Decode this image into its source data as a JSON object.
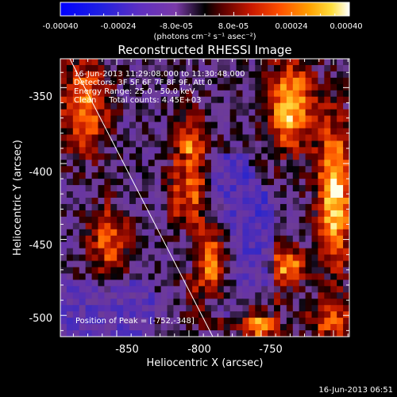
{
  "colorbar": {
    "ticks": [
      "-0.00040",
      "-0.00024",
      "-8.0e-05",
      "8.0e-05",
      "0.00024",
      "0.00040"
    ],
    "units": "(photons cm⁻² s⁻¹ asec⁻²)"
  },
  "title": "Reconstructed RHESSI Image",
  "annotations": [
    "16-Jun-2013 11:29:08.000 to 11:30:48.000",
    "Detectors: 3F 5F 6F 7F 8F 9F, Att 0",
    "Energy Range: 25.0 - 50.0 keV",
    "Clean     Total counts: 4.45E+03"
  ],
  "peak_text": "Position of Peak = [-752,-348]",
  "xaxis": {
    "label": "Heliocentric X (arcsec)",
    "ticks": [
      "-850",
      "-800",
      "-750"
    ],
    "tick_values": [
      -850,
      -800,
      -750
    ],
    "range": [
      -889,
      -689
    ]
  },
  "yaxis": {
    "label": "Heliocentric Y (arcsec)",
    "ticks": [
      "-350",
      "-400",
      "-450",
      "-500"
    ],
    "tick_values": [
      -350,
      -400,
      -450,
      -500
    ],
    "range": [
      -514,
      -331
    ]
  },
  "timestamp": "16-Jun-2013 06:51",
  "colors": {
    "background": "#000000",
    "text": "#ffffff",
    "limb": "#ffffff"
  }
}
